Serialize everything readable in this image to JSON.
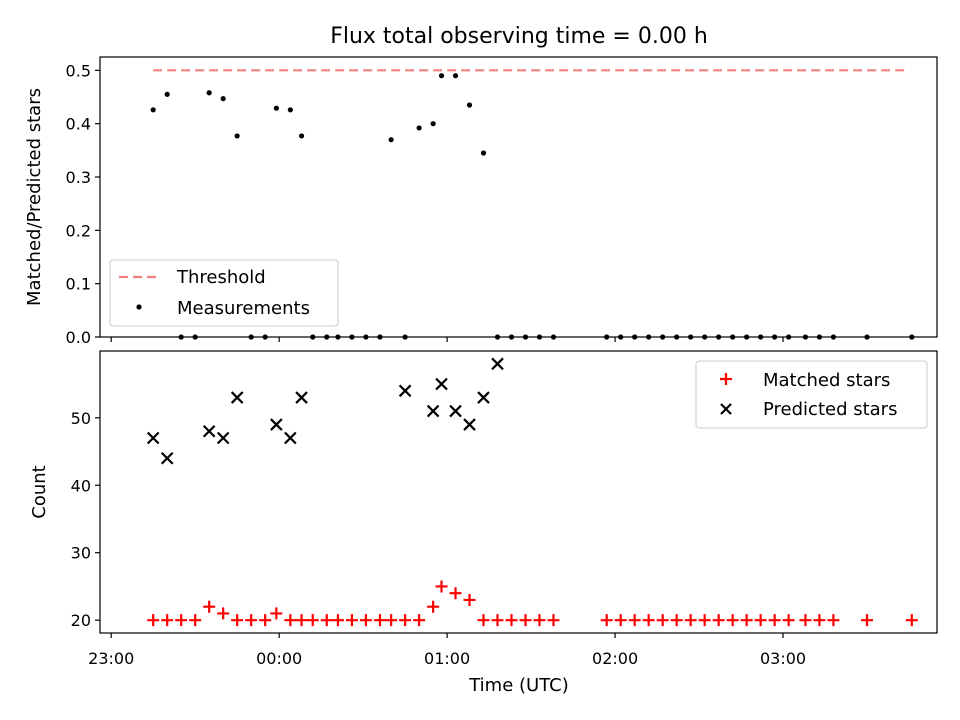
{
  "chart_data": [
    {
      "type": "scatter",
      "title": "Flux total observing time = 0.00 h",
      "xlabel": "",
      "ylabel": "Matched/Predicted stars",
      "ylim": [
        0,
        0.525
      ],
      "yticks": [
        "0.0",
        "0.1",
        "0.2",
        "0.3",
        "0.4",
        "0.5"
      ],
      "legend_position": "lower-left",
      "threshold": {
        "name": "Threshold",
        "value": 0.5,
        "color": "#f28080",
        "style": "dashed",
        "x_start": "23:15",
        "x_end": "03:45"
      },
      "series": [
        {
          "name": "Measurements",
          "color": "#000000",
          "marker": "dot",
          "x": [
            "23:15",
            "23:20",
            "23:25",
            "23:30",
            "23:35",
            "23:40",
            "23:45",
            "23:50",
            "23:55",
            "23:59",
            "00:04",
            "00:08",
            "00:12",
            "00:17",
            "00:21",
            "00:26",
            "00:31",
            "00:36",
            "00:40",
            "00:45",
            "00:50",
            "00:55",
            "00:58",
            "01:03",
            "01:08",
            "01:13",
            "01:18",
            "01:23",
            "01:28",
            "01:33",
            "01:38",
            "01:57",
            "02:02",
            "02:07",
            "02:12",
            "02:17",
            "02:22",
            "02:27",
            "02:32",
            "02:37",
            "02:42",
            "02:47",
            "02:52",
            "02:57",
            "03:02",
            "03:08",
            "03:13",
            "03:18",
            "03:30",
            "03:46"
          ],
          "y": [
            0.426,
            0.455,
            0,
            0,
            0.458,
            0.447,
            0.377,
            0,
            0,
            0.429,
            0.426,
            0.377,
            0,
            0,
            0,
            0,
            0,
            0,
            0.37,
            0,
            0.392,
            0.4,
            0.49,
            0.49,
            0.435,
            0.345,
            0,
            0,
            0,
            0,
            0,
            0,
            0,
            0,
            0,
            0,
            0,
            0,
            0,
            0,
            0,
            0,
            0,
            0,
            0,
            0,
            0,
            0,
            0,
            0
          ]
        }
      ]
    },
    {
      "type": "scatter",
      "title": "",
      "xlabel": "Time (UTC)",
      "ylabel": "Count",
      "ylim": [
        18.1,
        59.9
      ],
      "yticks": [
        "20",
        "30",
        "40",
        "50"
      ],
      "xticks": [
        "23:00",
        "00:00",
        "01:00",
        "02:00",
        "03:00"
      ],
      "xlim": [
        "22:56",
        "03:55"
      ],
      "legend_position": "top-right",
      "series": [
        {
          "name": "Matched stars",
          "color": "#ff0000",
          "marker": "plus",
          "x": [
            "23:15",
            "23:20",
            "23:25",
            "23:30",
            "23:35",
            "23:40",
            "23:45",
            "23:50",
            "23:55",
            "23:59",
            "00:04",
            "00:08",
            "00:12",
            "00:17",
            "00:21",
            "00:26",
            "00:31",
            "00:36",
            "00:40",
            "00:45",
            "00:50",
            "00:55",
            "00:58",
            "01:03",
            "01:08",
            "01:13",
            "01:18",
            "01:23",
            "01:28",
            "01:33",
            "01:38",
            "01:57",
            "02:02",
            "02:07",
            "02:12",
            "02:17",
            "02:22",
            "02:27",
            "02:32",
            "02:37",
            "02:42",
            "02:47",
            "02:52",
            "02:57",
            "03:02",
            "03:08",
            "03:13",
            "03:18",
            "03:30",
            "03:46"
          ],
          "y": [
            20,
            20,
            20,
            20,
            22,
            21,
            20,
            20,
            20,
            21,
            20,
            20,
            20,
            20,
            20,
            20,
            20,
            20,
            20,
            20,
            20,
            22,
            25,
            24,
            23,
            20,
            20,
            20,
            20,
            20,
            20,
            20,
            20,
            20,
            20,
            20,
            20,
            20,
            20,
            20,
            20,
            20,
            20,
            20,
            20,
            20,
            20,
            20,
            20,
            20
          ]
        },
        {
          "name": "Predicted stars",
          "color": "#000000",
          "marker": "x",
          "x": [
            "23:15",
            "23:20",
            "23:35",
            "23:40",
            "23:45",
            "23:59",
            "00:04",
            "00:08",
            "00:45",
            "00:55",
            "00:58",
            "01:03",
            "01:08",
            "01:13",
            "01:18"
          ],
          "y": [
            47,
            44,
            48,
            47,
            53,
            49,
            47,
            53,
            54,
            51,
            55,
            51,
            49,
            53,
            58
          ]
        }
      ]
    }
  ]
}
